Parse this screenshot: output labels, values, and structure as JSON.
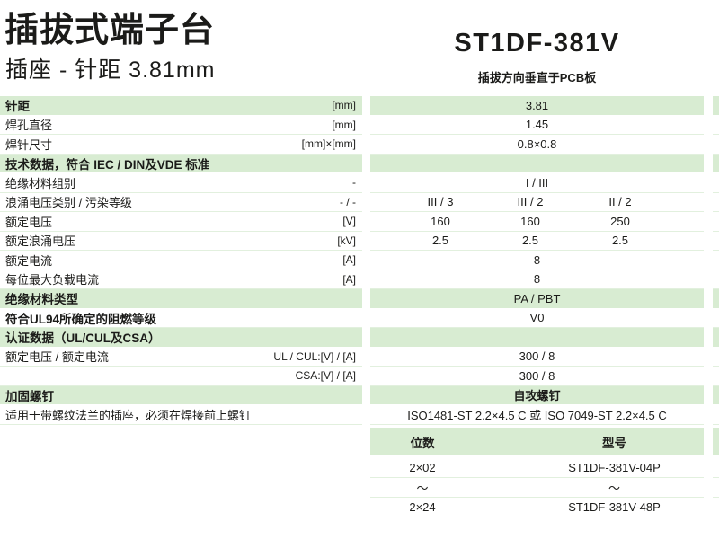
{
  "header": {
    "title": "插拔式端子台",
    "subtitle": "插座 - 针距  3.81mm",
    "product_name": "ST1DF-381V",
    "orientation": "插拔方向垂直于PCB板"
  },
  "colors": {
    "section_green": "#d8ecd2",
    "separator_line": "#e2f0de",
    "text": "#1b1b19"
  },
  "spec_rows": [
    {
      "label": "针距",
      "unit": "[mm]",
      "values": [
        "3.81"
      ],
      "green": true,
      "bold": true
    },
    {
      "label": "焊孔直径",
      "unit": "[mm]",
      "values": [
        "1.45"
      ]
    },
    {
      "label": "焊针尺寸",
      "unit": "[mm]×[mm]",
      "values": [
        "0.8×0.8"
      ]
    },
    {
      "label": "技术数据，符合 IEC / DIN及VDE 标准",
      "unit": "",
      "values": [],
      "green": true,
      "bold": true
    },
    {
      "label": "绝缘材料组别",
      "unit": "-",
      "values": [
        "I / III"
      ]
    },
    {
      "label": "浪涌电压类别 / 污染等级",
      "unit": "- / -",
      "values": [
        "III / 3",
        "III / 2",
        "II / 2"
      ]
    },
    {
      "label": "额定电压",
      "unit": "[V]",
      "values": [
        "160",
        "160",
        "250"
      ]
    },
    {
      "label": "额定浪涌电压",
      "unit": "[kV]",
      "values": [
        "2.5",
        "2.5",
        "2.5"
      ]
    },
    {
      "label": "额定电流",
      "unit": "[A]",
      "values": [
        "8"
      ]
    },
    {
      "label": "每位最大负载电流",
      "unit": "[A]",
      "values": [
        "8"
      ]
    },
    {
      "label": "绝缘材料类型",
      "unit": "",
      "values": [
        "PA / PBT"
      ],
      "green": true,
      "bold": true
    },
    {
      "label": "符合UL94所确定的阻燃等级",
      "unit": "",
      "values": [
        "V0"
      ],
      "bold": true
    },
    {
      "label": "认证数据（UL/CUL及CSA）",
      "unit": "",
      "values": [],
      "green": true,
      "bold": true
    },
    {
      "label": "额定电压 / 额定电流",
      "unit": "UL / CUL:[V] / [A]",
      "values": [
        "300 / 8"
      ]
    },
    {
      "label": "",
      "unit": "CSA:[V] / [A]",
      "values": [
        "300 / 8"
      ]
    },
    {
      "label": "加固螺钉",
      "unit": "",
      "values": [
        "自攻螺钉"
      ],
      "green": true,
      "bold": true,
      "value_bold": true
    },
    {
      "label": "适用于带螺纹法兰的插座，必须在焊接前上螺钉",
      "unit": "",
      "values": [
        "ISO1481-ST 2.2×4.5 C 或 ISO 7049-ST 2.2×4.5 C"
      ]
    }
  ],
  "model_table": {
    "headers": [
      "位数",
      "型号"
    ],
    "rows": [
      [
        "2×02",
        "ST1DF-381V-04P"
      ],
      [
        "〜",
        "〜"
      ],
      [
        "2×24",
        "ST1DF-381V-48P"
      ]
    ]
  }
}
